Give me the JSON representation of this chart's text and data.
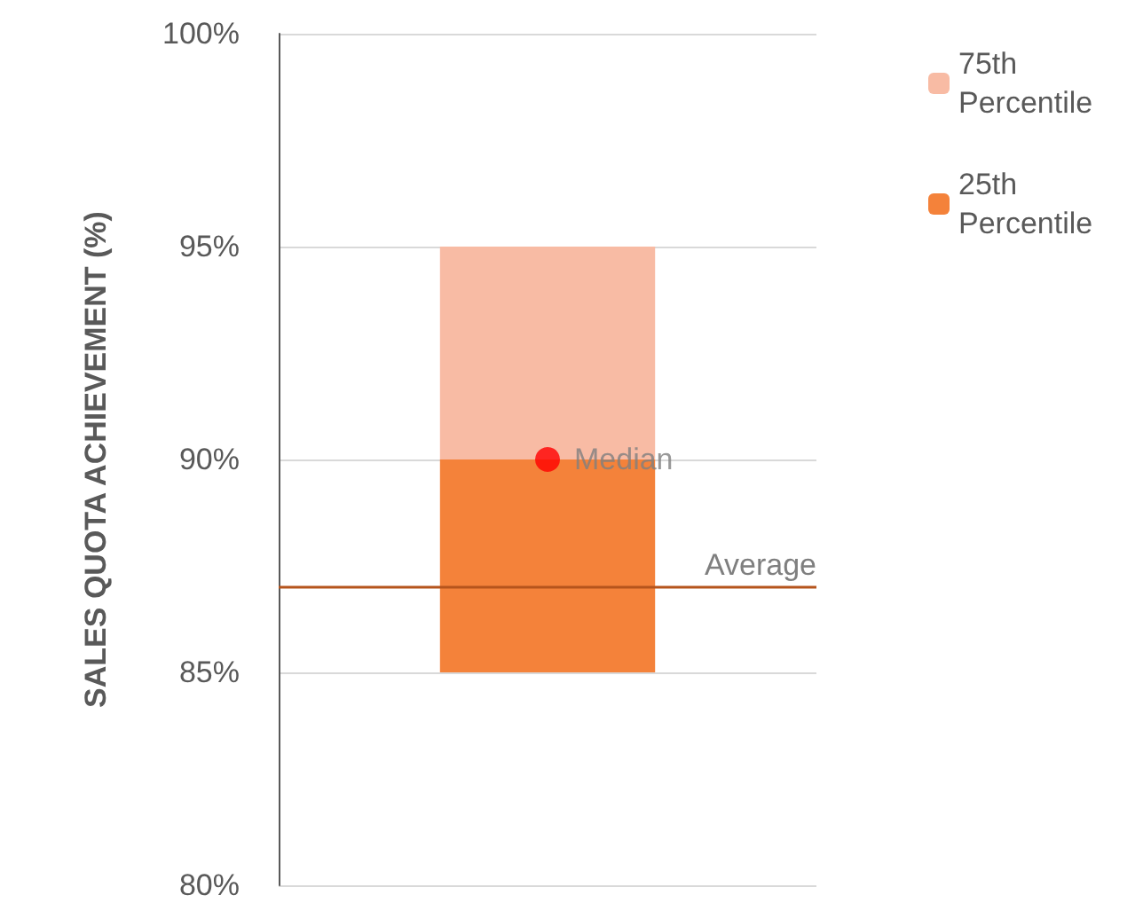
{
  "chart_data": {
    "type": "bar",
    "categories": [
      null
    ],
    "ylabel": "SALES QUOTA ACHIEVEMENT (%)",
    "series": [
      {
        "name": "25th Percentile",
        "color": "#f4823a",
        "values": [
          5
        ],
        "base": [
          85
        ]
      },
      {
        "name": "75th Percentile",
        "color": "#f8bba4",
        "values": [
          5
        ],
        "base": [
          90
        ]
      },
      {
        "name": "Median",
        "type": "scatter",
        "color": "#ff0000",
        "values": [
          90
        ],
        "marker": "circle"
      }
    ],
    "ref_lines": [
      {
        "axis": "y",
        "value": 87,
        "label": "Average",
        "color": "#b5541c"
      }
    ],
    "ylim": [
      80,
      100
    ],
    "yticks": [
      {
        "value": 80,
        "label": "80%"
      },
      {
        "value": 85,
        "label": "85%"
      },
      {
        "value": 90,
        "label": "90%"
      },
      {
        "value": 95,
        "label": "95%"
      },
      {
        "value": 100,
        "label": "100%"
      }
    ],
    "grid": "y",
    "legend": "top right"
  }
}
